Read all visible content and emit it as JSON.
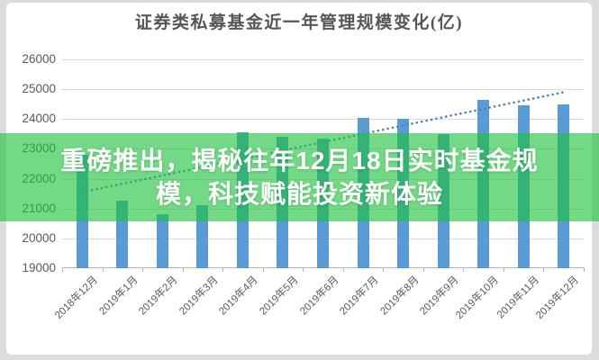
{
  "page": {
    "background_color": "#dcdcdc",
    "card_background": "#ffffff"
  },
  "chart_data": {
    "type": "bar",
    "title": "证券类私募基金近一年管理规模变化(亿)",
    "categories": [
      "2018年12月",
      "2019年1月",
      "2019年2月",
      "2019年3月",
      "2019年4月",
      "2019年5月",
      "2019年6月",
      "2019年7月",
      "2019年8月",
      "2019年9月",
      "2019年10月",
      "2019年11月",
      "2019年12月"
    ],
    "values": [
      22800,
      21250,
      20800,
      21100,
      23550,
      23400,
      23350,
      24050,
      24000,
      23500,
      24650,
      24450,
      24480
    ],
    "ylabel": "",
    "xlabel": "",
    "ylim": [
      19000,
      26000
    ],
    "ytick_step": 1000,
    "ytick_labels": [
      "26000",
      "25000",
      "24000",
      "23000",
      "22000",
      "21000",
      "20000",
      "19000"
    ],
    "grid": "horizontal",
    "legend_position": "none",
    "trend_line": {
      "type": "dotted-linear",
      "start_value": 21550,
      "end_value": 24900,
      "color": "#4f81bd"
    },
    "bar_color": "#5b9bd5",
    "gridline_color": "#d9d9d9",
    "axis_color": "#b7b7b7",
    "label_color": "#595959",
    "title_color": "#565656"
  },
  "banner": {
    "lines": [
      "重磅推出，揭秘往年12月18日实时基金规",
      "模，科技赋能投资新体验"
    ],
    "background_color": "rgba(30,194,60,0.62)",
    "text_color": "#ffffff"
  }
}
